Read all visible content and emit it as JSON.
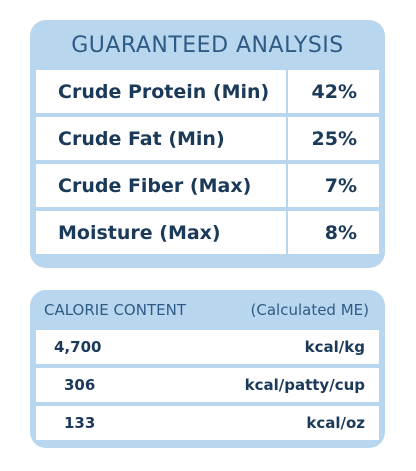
{
  "guaranteed_analysis": {
    "title": "GUARANTEED ANALYSIS",
    "rows": [
      {
        "label": "Crude Protein (Min)",
        "value": "42%"
      },
      {
        "label": "Crude Fat (Min)",
        "value": "25%"
      },
      {
        "label": "Crude Fiber (Max)",
        "value": "7%"
      },
      {
        "label": "Moisture (Max)",
        "value": "8%"
      }
    ]
  },
  "calorie_content": {
    "title": "CALORIE CONTENT",
    "subtitle": "(Calculated ME)",
    "rows": [
      {
        "amount": "4,700",
        "unit": "kcal/kg"
      },
      {
        "amount": "306",
        "unit": "kcal/patty/cup"
      },
      {
        "amount": "133",
        "unit": "kcal/oz"
      }
    ]
  },
  "colors": {
    "panel_bg": "#b9d6ef",
    "header_text": "#2e5b86",
    "body_text": "#1b3959"
  }
}
